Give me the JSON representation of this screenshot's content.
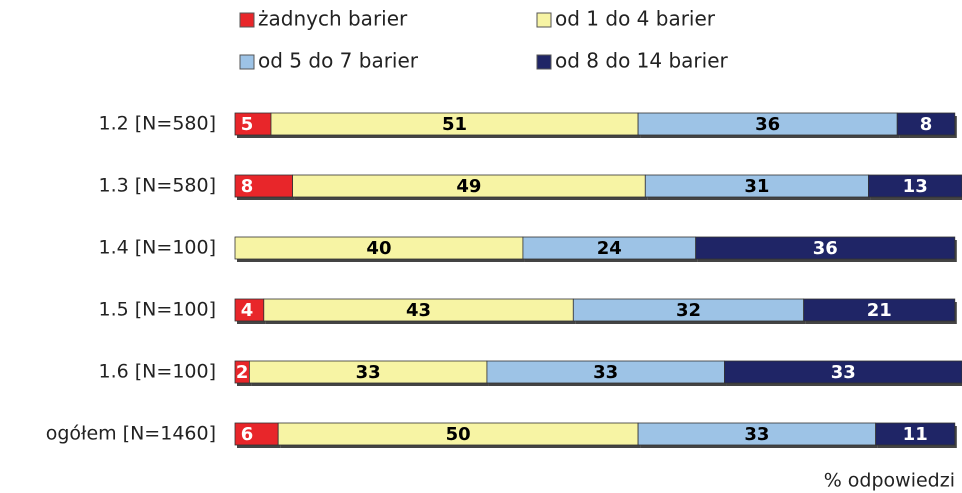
{
  "chart_data": {
    "type": "stacked-bar",
    "orientation": "horizontal",
    "categories": [
      "1.2 [N=580]",
      "1.3 [N=580]",
      "1.4 [N=100]",
      "1.5 [N=100]",
      "1.6 [N=100]",
      "ogółem [N=1460]"
    ],
    "series": [
      {
        "name": "żadnych barier",
        "color": "#e8262a",
        "values": [
          5,
          8,
          null,
          4,
          2,
          6
        ]
      },
      {
        "name": "od 1 do 4 barier",
        "color": "#f7f4a4",
        "values": [
          51,
          49,
          40,
          43,
          33,
          50
        ]
      },
      {
        "name": "od 5 do 7 barier",
        "color": "#9dc3e6",
        "values": [
          36,
          31,
          24,
          32,
          33,
          33
        ]
      },
      {
        "name": "od 8 do 14 barier",
        "color": "#1f2566",
        "values": [
          8,
          13,
          36,
          21,
          33,
          11
        ]
      }
    ],
    "axis_note": "% odpowiedzi"
  }
}
